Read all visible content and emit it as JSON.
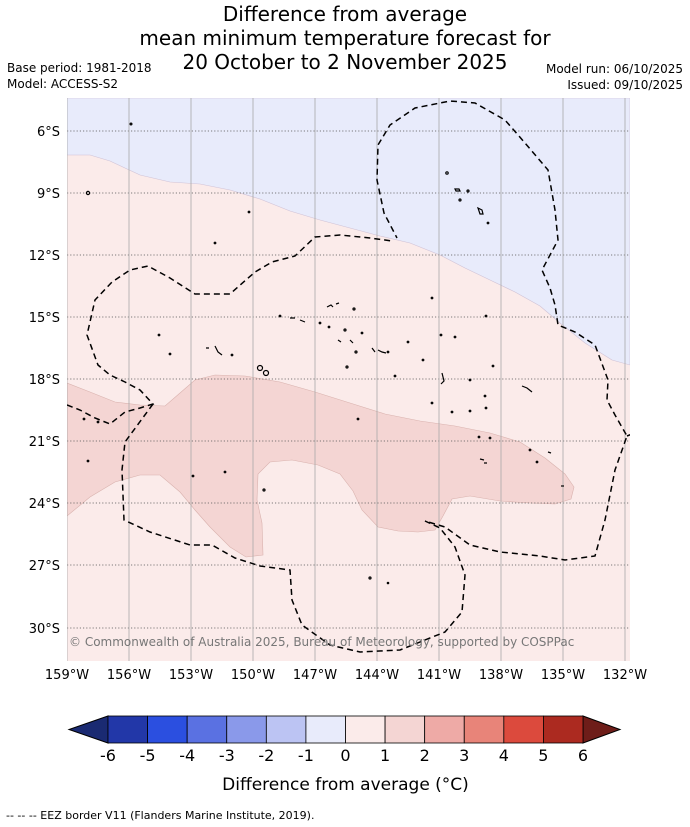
{
  "title": {
    "line1": "Difference from average",
    "line2": "mean minimum temperature forecast for",
    "line3": "20 October to 2 November 2025"
  },
  "meta": {
    "base_period": "Base period: 1981-2018",
    "model": "Model: ACCESS-S2",
    "model_run": "Model run: 06/10/2025",
    "issued": "Issued: 09/10/2025"
  },
  "map": {
    "lat_labels": [
      "6°S",
      "9°S",
      "12°S",
      "15°S",
      "18°S",
      "21°S",
      "24°S",
      "27°S",
      "30°S"
    ],
    "lon_labels": [
      "159°W",
      "156°W",
      "153°W",
      "150°W",
      "147°W",
      "144°W",
      "141°W",
      "138°W",
      "135°W",
      "132°W"
    ],
    "copyright": "© Commonwealth of Australia 2025, Bureau of Meteorology, supported by COSPPac",
    "colors": {
      "anomaly_minus_1_to_0": "#e8ebfb",
      "anomaly_0_to_1": "#fbebea",
      "anomaly_1_to_2": "#f4d5d3"
    }
  },
  "colorbar": {
    "ticks": [
      "-6",
      "-5",
      "-4",
      "-3",
      "-2",
      "-1",
      "0",
      "1",
      "2",
      "3",
      "4",
      "5",
      "6"
    ],
    "colors": [
      "#2237a8",
      "#2b4fe0",
      "#5a71e2",
      "#8a99ea",
      "#bcc4f3",
      "#e8ebfb",
      "#fbebea",
      "#f4d5d3",
      "#eeaaa6",
      "#e88479",
      "#dc4a3d",
      "#ac2a20"
    ],
    "under_color": "#1a2a72",
    "over_color": "#6e1d19",
    "label": "Difference from average (°C)"
  },
  "footnote": "-- -- -- EEZ border V11 (Flanders Marine Institute, 2019)."
}
